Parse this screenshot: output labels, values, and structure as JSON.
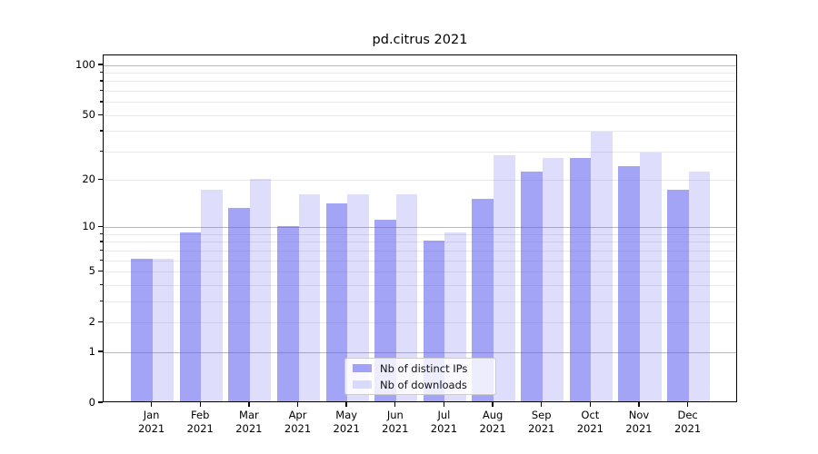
{
  "title": "pd.citrus 2021",
  "chart_data": {
    "type": "bar",
    "title": "pd.citrus 2021",
    "categories": [
      "Jan",
      "Feb",
      "Mar",
      "Apr",
      "May",
      "Jun",
      "Jul",
      "Aug",
      "Sep",
      "Oct",
      "Nov",
      "Dec"
    ],
    "category_year": "2021",
    "series": [
      {
        "name": "Nb of distinct IPs",
        "color": "rgba(90,90,240,0.55)",
        "values": [
          6,
          9,
          13,
          10,
          14,
          11,
          8,
          15,
          22,
          27,
          24,
          17
        ]
      },
      {
        "name": "Nb of downloads",
        "color": "rgba(90,90,240,0.2)",
        "values": [
          6,
          17,
          20,
          16,
          16,
          16,
          9,
          28,
          27,
          39,
          29,
          22
        ]
      }
    ],
    "xlabel": "",
    "ylabel": "",
    "yscale": "log1p",
    "ylim": [
      0,
      115
    ],
    "yticks": [
      0,
      1,
      2,
      5,
      10,
      20,
      50,
      100
    ],
    "grid_major": [
      1,
      10,
      100
    ],
    "grid_minor": [
      2,
      3,
      4,
      5,
      6,
      7,
      8,
      9,
      20,
      30,
      40,
      50,
      60,
      70,
      80,
      90
    ],
    "grid": "on",
    "legend_position": "lower-center"
  }
}
